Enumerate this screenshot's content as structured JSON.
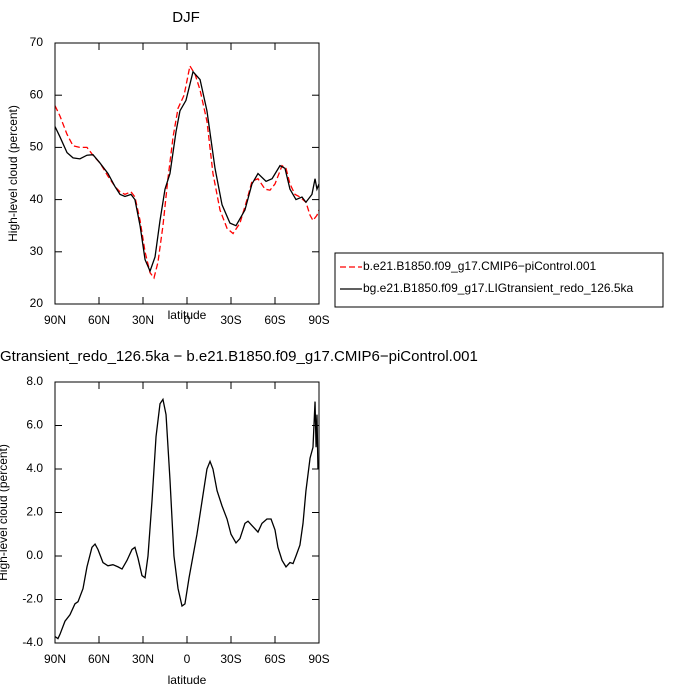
{
  "chart_data": [
    {
      "type": "line",
      "title": "DJF",
      "xlabel": "latitude",
      "ylabel": "High-level cloud (percent)",
      "xlim": [
        90,
        -90
      ],
      "xticks": [
        {
          "value": 90,
          "label": "90N"
        },
        {
          "value": 60,
          "label": "60N"
        },
        {
          "value": 30,
          "label": "30N"
        },
        0,
        {
          "value": -30,
          "label": "30S"
        },
        {
          "value": -60,
          "label": "60S"
        },
        {
          "value": -90,
          "label": "90S"
        }
      ],
      "ylim": [
        20,
        70
      ],
      "yticks": [
        20,
        30,
        40,
        50,
        60,
        70
      ],
      "legend": "outside-right",
      "series": [
        {
          "name": "b.e21.B1850.f09_g17.CMIP6−piControl.001",
          "color": "#ff0000",
          "line_style": "dashed",
          "x": [
            90,
            86.6,
            81.8,
            77.7,
            73,
            68.2,
            64.1,
            59.3,
            53.9,
            49.1,
            45.7,
            42.3,
            38.2,
            35.5,
            32,
            28.6,
            25.2,
            22.5,
            19.8,
            16.4,
            13,
            9.5,
            6.1,
            2,
            -2,
            -5.5,
            -8.9,
            -13.6,
            -17.7,
            -22.5,
            -27.3,
            -31.4,
            -36.1,
            -40.9,
            -44.3,
            -48.4,
            -53.2,
            -56.6,
            -60,
            -64.8,
            -67.5,
            -70.2,
            -73.6,
            -77,
            -81.1,
            -83.9,
            -85.9,
            -88.6,
            -90
          ],
          "values": [
            58,
            56,
            52.5,
            50.3,
            50,
            50,
            48.5,
            47,
            44.5,
            42.5,
            41.5,
            41,
            41.5,
            40.5,
            36,
            30,
            26,
            25,
            28,
            35,
            44,
            52,
            57.5,
            60,
            65.6,
            64,
            61,
            55,
            45,
            38,
            34.5,
            33.5,
            35.5,
            40,
            43.5,
            44,
            42,
            41.8,
            43,
            46.5,
            46,
            43,
            41,
            40.5,
            39.5,
            37,
            36,
            37,
            38
          ]
        },
        {
          "name": "bg.e21.B1850.f09_g17.LIGtransient_redo_126.5ka",
          "color": "#000000",
          "line_style": "solid",
          "x": [
            90,
            86.6,
            81.8,
            77.7,
            73,
            68.2,
            64.1,
            59.3,
            53.9,
            49.1,
            45.7,
            42.3,
            38.2,
            35.5,
            32,
            28.6,
            25.2,
            21.8,
            18.4,
            15,
            11.6,
            7.5,
            4.8,
            0.7,
            -4.1,
            -8.9,
            -13.6,
            -19.1,
            -23.9,
            -29.3,
            -33.4,
            -39.5,
            -44.3,
            -48.4,
            -53.9,
            -58,
            -63.4,
            -66.8,
            -70.2,
            -74.3,
            -78.4,
            -81.1,
            -85.2,
            -87.3,
            -88.6,
            -90
          ],
          "values": [
            54,
            52,
            49,
            48,
            47.8,
            48.5,
            48.6,
            47,
            45,
            42.5,
            41,
            40.6,
            41,
            40,
            35,
            28.5,
            26.3,
            29,
            36,
            42,
            45,
            53,
            57,
            59,
            64.5,
            63,
            57,
            46,
            39,
            35.5,
            35,
            38,
            43,
            45,
            43.5,
            44,
            46.5,
            46,
            42,
            40,
            40.5,
            39.5,
            41,
            44,
            42,
            43
          ]
        }
      ]
    },
    {
      "type": "line",
      "title": "Gtransient_redo_126.5ka − b.e21.B1850.f09_g17.CMIP6−piControl.001",
      "xlabel": "latitude",
      "ylabel": "High-level cloud (percent)",
      "xlim": [
        90,
        -90
      ],
      "xticks": [
        {
          "value": 90,
          "label": "90N"
        },
        {
          "value": 60,
          "label": "60N"
        },
        {
          "value": 30,
          "label": "30N"
        },
        0,
        {
          "value": -30,
          "label": "30S"
        },
        {
          "value": -60,
          "label": "60S"
        },
        {
          "value": -90,
          "label": "90S"
        }
      ],
      "ylim": [
        -4,
        8
      ],
      "yticks": [
        {
          "value": -4,
          "label": "-4.0"
        },
        {
          "value": -2,
          "label": "-2.0"
        },
        {
          "value": 0,
          "label": "0.0"
        },
        {
          "value": 2,
          "label": "2.0"
        },
        {
          "value": 4,
          "label": "4.0"
        },
        {
          "value": 6,
          "label": "6.0"
        },
        {
          "value": 8,
          "label": "8.0"
        }
      ],
      "series": [
        {
          "color": "#000000",
          "line_style": "solid",
          "x": [
            90,
            88,
            86.6,
            83.2,
            79.8,
            76.4,
            74.3,
            70.9,
            68.2,
            64.8,
            62.7,
            60.7,
            57.3,
            53.9,
            50.5,
            47,
            44.3,
            40.9,
            37.5,
            35.5,
            33.4,
            30.7,
            28.6,
            26.6,
            23.9,
            21.1,
            18.4,
            16.4,
            14.3,
            11.6,
            8.9,
            6.1,
            3.4,
            1.4,
            -1.4,
            -4.1,
            -6.8,
            -10.2,
            -13.6,
            -15.7,
            -17.7,
            -20.5,
            -23.9,
            -27.3,
            -30,
            -33.4,
            -36.1,
            -39.5,
            -41.6,
            -44.3,
            -48.4,
            -51.1,
            -54.5,
            -57.3,
            -60,
            -62,
            -64.8,
            -67.5,
            -70.2,
            -72.3,
            -74.3,
            -77,
            -79.1,
            -81.1,
            -83.9,
            -85.9,
            -87.3,
            -88,
            -88.6,
            -89.3,
            -90
          ],
          "values": [
            -3.7,
            -3.8,
            -3.6,
            -3,
            -2.7,
            -2.2,
            -2.1,
            -1.5,
            -0.5,
            0.4,
            0.55,
            0.3,
            -0.3,
            -0.45,
            -0.4,
            -0.5,
            -0.6,
            -0.2,
            0.3,
            0.4,
            -0.1,
            -0.9,
            -1,
            0,
            2.5,
            5.5,
            7,
            7.2,
            6.5,
            3.5,
            0,
            -1.5,
            -2.3,
            -2.2,
            -1,
            0,
            1,
            2.5,
            4,
            4.35,
            4,
            3,
            2.3,
            1.7,
            1,
            0.6,
            0.8,
            1.5,
            1.6,
            1.4,
            1.1,
            1.5,
            1.7,
            1.7,
            1.2,
            0.4,
            -0.2,
            -0.5,
            -0.3,
            -0.35,
            0,
            0.5,
            1.5,
            3,
            4.5,
            5,
            7.1,
            5,
            6.5,
            4,
            4.2
          ]
        }
      ]
    }
  ]
}
